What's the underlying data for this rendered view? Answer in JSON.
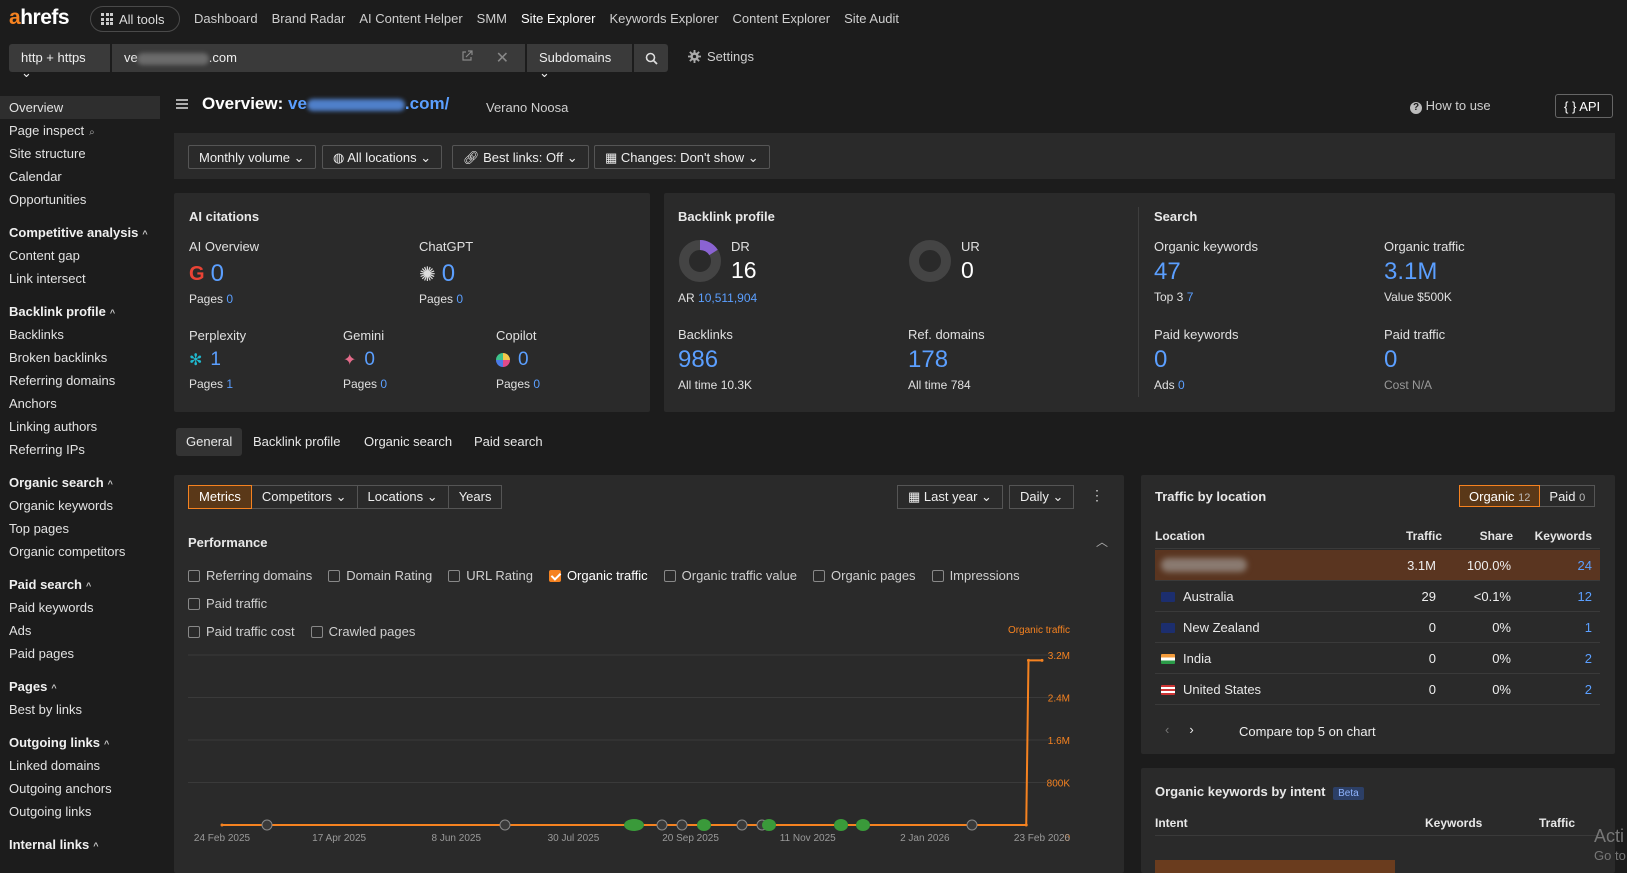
{
  "header": {
    "logo_a": "a",
    "logo_rest": "hrefs",
    "all_tools": "All tools",
    "nav": [
      "Dashboard",
      "Brand Radar",
      "AI Content Helper",
      "SMM",
      "Site Explorer",
      "Keywords Explorer",
      "Content Explorer",
      "Site Audit"
    ],
    "active_nav": "Site Explorer"
  },
  "search": {
    "protocol": "http + https",
    "url_prefix": "ve",
    "url_suffix": ".com",
    "mode": "Subdomains",
    "settings": "Settings"
  },
  "sidebar": {
    "top_items": [
      "Overview",
      "Page inspect",
      "Site structure",
      "Calendar",
      "Opportunities"
    ],
    "groups": [
      {
        "title": "Competitive analysis",
        "items": [
          "Content gap",
          "Link intersect"
        ]
      },
      {
        "title": "Backlink profile",
        "items": [
          "Backlinks",
          "Broken backlinks",
          "Referring domains",
          "Anchors",
          "Linking authors",
          "Referring IPs"
        ]
      },
      {
        "title": "Organic search",
        "items": [
          "Organic keywords",
          "Top pages",
          "Organic competitors"
        ]
      },
      {
        "title": "Paid search",
        "items": [
          "Paid keywords",
          "Ads",
          "Paid pages"
        ]
      },
      {
        "title": "Pages",
        "items": [
          "Best by links"
        ]
      },
      {
        "title": "Outgoing links",
        "items": [
          "Linked domains",
          "Outgoing anchors",
          "Outgoing links"
        ]
      },
      {
        "title": "Internal links",
        "items": []
      }
    ]
  },
  "overview": {
    "title": "Overview:",
    "url_prefix": "ve",
    "url_suffix": ".com/",
    "site_name": "Verano Noosa",
    "how_to_use": "How to use",
    "api": "API"
  },
  "filters": [
    "Monthly volume",
    "All locations",
    "Best links: Off",
    "Changes: Don't show"
  ],
  "ai_citations": {
    "title": "AI citations",
    "items": [
      {
        "name": "AI Overview",
        "value": "0",
        "pages_label": "Pages",
        "pages": "0"
      },
      {
        "name": "ChatGPT",
        "value": "0",
        "pages_label": "Pages",
        "pages": "0"
      },
      {
        "name": "Perplexity",
        "value": "1",
        "pages_label": "Pages",
        "pages": "1"
      },
      {
        "name": "Gemini",
        "value": "0",
        "pages_label": "Pages",
        "pages": "0"
      },
      {
        "name": "Copilot",
        "value": "0",
        "pages_label": "Pages",
        "pages": "0"
      }
    ]
  },
  "backlink_profile": {
    "title": "Backlink profile",
    "dr_label": "DR",
    "dr": "16",
    "dr_fraction": 0.16,
    "ar_label": "AR",
    "ar": "10,511,904",
    "ur_label": "UR",
    "ur": "0",
    "backlinks_label": "Backlinks",
    "backlinks": "986",
    "backlinks_all_label": "All time",
    "backlinks_all": "10.3K",
    "refdomains_label": "Ref. domains",
    "refdomains": "178",
    "refdomains_all_label": "All time",
    "refdomains_all": "784"
  },
  "search_panel": {
    "title": "Search",
    "organic_keywords_label": "Organic keywords",
    "organic_keywords": "47",
    "top3_label": "Top 3",
    "top3": "7",
    "organic_traffic_label": "Organic traffic",
    "organic_traffic": "3.1M",
    "value_label": "Value",
    "value": "$500K",
    "paid_keywords_label": "Paid keywords",
    "paid_keywords": "0",
    "ads_label": "Ads",
    "ads": "0",
    "paid_traffic_label": "Paid traffic",
    "paid_traffic": "0",
    "cost_label": "Cost",
    "cost": "N/A"
  },
  "tabs": [
    "General",
    "Backlink profile",
    "Organic search",
    "Paid search"
  ],
  "metrics_bar": {
    "buttons": [
      "Metrics",
      "Competitors",
      "Locations",
      "Years"
    ],
    "last_year": "Last year",
    "daily": "Daily"
  },
  "performance": {
    "title": "Performance",
    "checkboxes": [
      {
        "label": "Referring domains",
        "checked": false
      },
      {
        "label": "Domain Rating",
        "checked": false
      },
      {
        "label": "URL Rating",
        "checked": false
      },
      {
        "label": "Organic traffic",
        "checked": true
      },
      {
        "label": "Organic traffic value",
        "checked": false
      },
      {
        "label": "Organic pages",
        "checked": false
      },
      {
        "label": "Impressions",
        "checked": false
      },
      {
        "label": "Paid traffic",
        "checked": false
      },
      {
        "label": "Paid traffic cost",
        "checked": false
      },
      {
        "label": "Crawled pages",
        "checked": false
      }
    ]
  },
  "chart_data": {
    "type": "line",
    "series": [
      {
        "name": "Organic traffic",
        "color": "#f58220"
      }
    ],
    "x": [
      "24 Feb 2025",
      "17 Apr 2025",
      "8 Jun 2025",
      "30 Jul 2025",
      "20 Sep 2025",
      "11 Nov 2025",
      "2 Jan 2026",
      "23 Feb 2026"
    ],
    "x_ticks": [
      "24 Feb 2025",
      "17 Apr 2025",
      "8 Jun 2025",
      "30 Jul 2025",
      "20 Sep 2025",
      "11 Nov 2025",
      "2 Jan 2026",
      "23 Feb 2026"
    ],
    "y_ticks": [
      "3.2M",
      "2.4M",
      "1.6M",
      "800K",
      "0"
    ],
    "ylim": [
      0,
      3200000
    ],
    "points": [
      {
        "x": "24 Feb 2025",
        "y": 0
      },
      {
        "x": "16 Feb 2026",
        "y": 0
      },
      {
        "x": "17 Feb 2026",
        "y": 3100000
      },
      {
        "x": "23 Feb 2026",
        "y": 3100000
      }
    ],
    "grid": true
  },
  "traffic_by_location": {
    "title": "Traffic by location",
    "toggle": [
      {
        "label": "Organic",
        "count": "12"
      },
      {
        "label": "Paid",
        "count": "0"
      }
    ],
    "columns": [
      "Location",
      "Traffic",
      "Share",
      "Keywords"
    ],
    "rows": [
      {
        "location": "",
        "traffic": "3.1M",
        "share": "100.0%",
        "keywords": "24",
        "flag": "blurred"
      },
      {
        "location": "Australia",
        "traffic": "29",
        "share": "<0.1%",
        "keywords": "12",
        "flag": "au"
      },
      {
        "location": "New Zealand",
        "traffic": "0",
        "share": "0%",
        "keywords": "1",
        "flag": "nz"
      },
      {
        "location": "India",
        "traffic": "0",
        "share": "0%",
        "keywords": "2",
        "flag": "in"
      },
      {
        "location": "United States",
        "traffic": "0",
        "share": "0%",
        "keywords": "2",
        "flag": "us"
      }
    ],
    "compare": "Compare top 5 on chart"
  },
  "intent": {
    "title": "Organic keywords by intent",
    "badge": "Beta",
    "columns": [
      "Intent",
      "Keywords",
      "Traffic"
    ]
  },
  "watermark": {
    "line1": "Acti",
    "line2": "Go to"
  }
}
